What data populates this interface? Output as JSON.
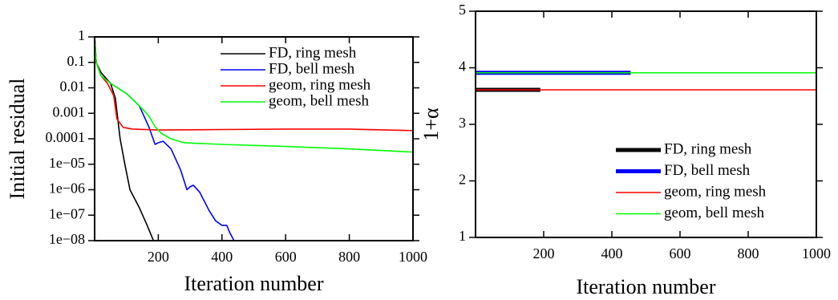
{
  "chart_data": [
    {
      "type": "line",
      "xlabel": "Iteration number",
      "ylabel": "Initial residual",
      "log_y": true,
      "xlim": [
        0,
        1000
      ],
      "ylim": [
        1e-08,
        1
      ],
      "xticks": [
        200,
        400,
        600,
        800,
        1000
      ],
      "yticks": [
        1,
        0.1,
        0.01,
        0.001,
        0.0001,
        {
          "value": 1e-05,
          "label": "1e−05"
        },
        {
          "value": 1e-06,
          "label": "1e−06"
        },
        {
          "value": 1e-07,
          "label": "1e−07"
        },
        {
          "value": 1e-08,
          "label": "1e−08"
        }
      ],
      "legend": "upper right",
      "series": [
        {
          "name": "FD, ring mesh",
          "color": "#000000",
          "x": [
            0,
            5,
            20,
            50,
            65,
            80,
            95,
            111,
            140,
            165,
            185
          ],
          "values": [
            1,
            0.1,
            0.04,
            0.015,
            0.004,
            0.0001,
            1e-05,
            1e-06,
            2e-07,
            4e-08,
            1e-08
          ]
        },
        {
          "name": "FD, bell mesh",
          "color": "#0000ff",
          "x": [
            0,
            5,
            20,
            50,
            100,
            140,
            170,
            190,
            200,
            215,
            240,
            270,
            290,
            300,
            310,
            330,
            360,
            380,
            400,
            415,
            425,
            438
          ],
          "values": [
            1,
            0.1,
            0.03,
            0.015,
            0.006,
            0.002,
            0.0003,
            6e-05,
            7e-05,
            8e-05,
            4e-05,
            6e-06,
            1e-06,
            1.3e-06,
            1.5e-06,
            8e-07,
            1.5e-07,
            6e-08,
            4e-08,
            4e-08,
            2e-08,
            1e-08
          ]
        },
        {
          "name": "geom, ring mesh",
          "color": "#ff0000",
          "x": [
            0,
            5,
            20,
            40,
            60,
            70,
            90,
            120,
            200,
            400,
            600,
            800,
            1000
          ],
          "values": [
            1,
            0.1,
            0.03,
            0.015,
            0.005,
            0.0006,
            0.00028,
            0.00024,
            0.00022,
            0.00023,
            0.00024,
            0.00024,
            0.00021
          ]
        },
        {
          "name": "geom, bell mesh",
          "color": "#00ff00",
          "x": [
            0,
            5,
            20,
            50,
            100,
            140,
            170,
            190,
            210,
            240,
            280,
            400,
            600,
            800,
            1000
          ],
          "values": [
            1,
            0.1,
            0.03,
            0.015,
            0.006,
            0.002,
            0.0008,
            0.0003,
            0.00016,
            0.0001,
            7e-05,
            6e-05,
            5e-05,
            4e-05,
            3e-05
          ]
        }
      ]
    },
    {
      "type": "line",
      "xlabel": "Iteration number",
      "ylabel": "1+α",
      "log_y": false,
      "xlim": [
        0,
        1000
      ],
      "ylim": [
        1,
        5
      ],
      "xticks": [
        200,
        400,
        600,
        800,
        1000
      ],
      "yticks": [
        1,
        2,
        3,
        4,
        5
      ],
      "legend": "lower right",
      "series": [
        {
          "name": "FD, ring mesh",
          "color": "#000000",
          "line_width": 5,
          "x": [
            0,
            190
          ],
          "values": [
            3.61,
            3.61
          ]
        },
        {
          "name": "FD, bell mesh",
          "color": "#0000ff",
          "line_width": 5,
          "x": [
            0,
            455
          ],
          "values": [
            3.91,
            3.91
          ]
        },
        {
          "name": "geom, ring mesh",
          "color": "#ff0000",
          "line_width": 1.5,
          "x": [
            0,
            1000
          ],
          "values": [
            3.61,
            3.61
          ]
        },
        {
          "name": "geom, bell mesh",
          "color": "#00ff00",
          "line_width": 1.5,
          "x": [
            0,
            1000
          ],
          "values": [
            3.91,
            3.91
          ]
        }
      ]
    }
  ]
}
